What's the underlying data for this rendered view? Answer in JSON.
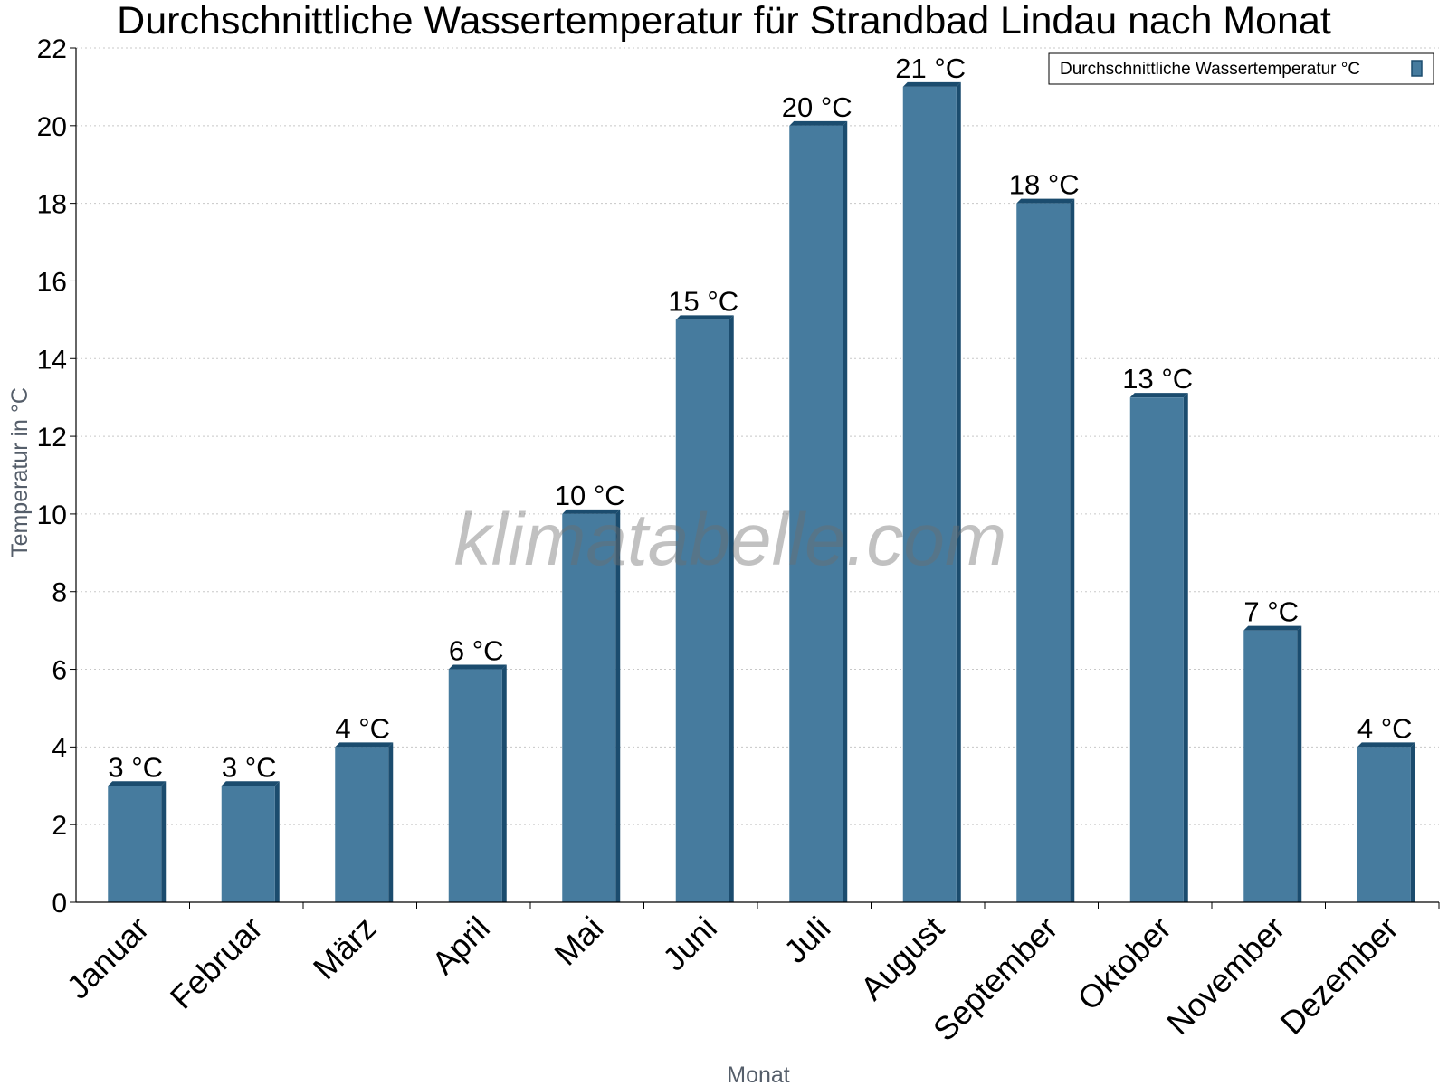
{
  "chart_data": {
    "type": "bar",
    "title": "Durchschnittliche Wassertemperatur für Strandbad Lindau nach Monat",
    "xlabel": "Monat",
    "ylabel": "Temperatur in °C",
    "categories": [
      "Januar",
      "Februar",
      "März",
      "April",
      "Mai",
      "Juni",
      "Juli",
      "August",
      "September",
      "Oktober",
      "November",
      "Dezember"
    ],
    "series": [
      {
        "name": "Durchschnittliche Wassertemperatur °C",
        "values": [
          3,
          3,
          4,
          6,
          10,
          15,
          20,
          21,
          18,
          13,
          7,
          4
        ],
        "labels": [
          "3 °C",
          "3 °C",
          "4 °C",
          "6 °C",
          "10 °C",
          "15 °C",
          "20 °C",
          "21 °C",
          "18 °C",
          "13 °C",
          "7 °C",
          "4 °C"
        ],
        "color": "#467b9e",
        "edge_color": "#1b4c6e"
      }
    ],
    "ylim": [
      0,
      22
    ],
    "yticks": [
      0,
      2,
      4,
      6,
      8,
      10,
      12,
      14,
      16,
      18,
      20,
      22
    ],
    "grid": true,
    "legend_position": "top-right",
    "watermark": "klimatabelle.com"
  }
}
